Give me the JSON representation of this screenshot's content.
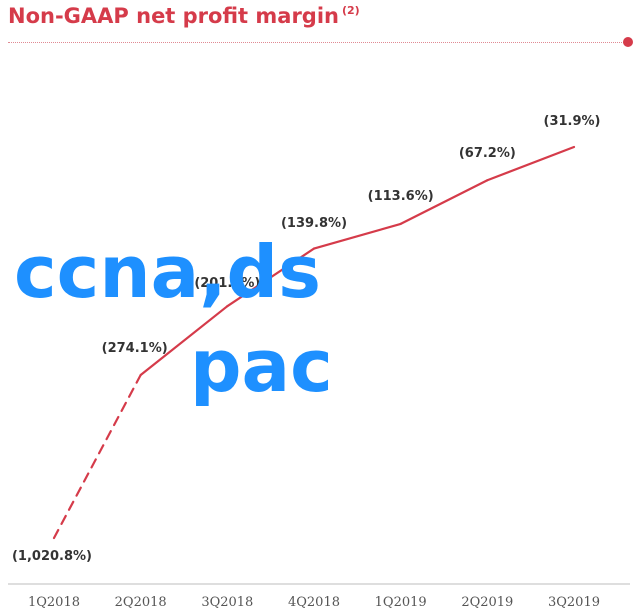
{
  "title": "Non-GAAP net profit margin",
  "title_footnote": "(2)",
  "watermark": {
    "line1": "ccna,ds",
    "line2": "pac"
  },
  "colors": {
    "accent": "#d53b4a",
    "watermark": "#1e90ff",
    "label": "#333333"
  },
  "chart_data": {
    "type": "line",
    "title": "Non-GAAP net profit margin",
    "categories": [
      "1Q2018",
      "2Q2018",
      "3Q2018",
      "4Q2018",
      "1Q2019",
      "2Q2019",
      "3Q2019"
    ],
    "series": [
      {
        "values": [
          -1020.8,
          -274.1,
          -201.0,
          -139.8,
          -113.6,
          -67.2,
          -31.9
        ],
        "labels": [
          "(1,020.8%)",
          "(274.1%)",
          "(201.0%)",
          "(139.8%)",
          "(113.6%)",
          "(67.2%)",
          "(31.9%)"
        ],
        "dashed_segment_indices": [
          0
        ]
      }
    ],
    "y_scale": "nonlinear",
    "grid": false,
    "legend": "none",
    "xlabel": "",
    "ylabel": ""
  }
}
